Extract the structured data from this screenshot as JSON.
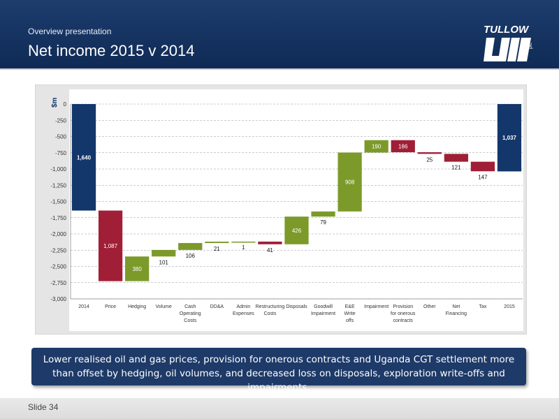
{
  "header": {
    "subtitle": "Overview presentation",
    "title": "Net income 2015 v 2014",
    "logo_text": "TULLOW",
    "logo_suffix": "plc"
  },
  "chart_data": {
    "type": "waterfall",
    "ylabel": "$m",
    "ylim": [
      -3000,
      0
    ],
    "yticks": [
      "0",
      "-250",
      "-500",
      "-750",
      "-1,000",
      "-1,250",
      "-1,500",
      "-1,750",
      "-2,000",
      "-2,250",
      "-2,500",
      "-2,750",
      "-3,000"
    ],
    "grid": true,
    "items": [
      {
        "label": "2014",
        "lines": [
          "2014"
        ],
        "start": 0,
        "end": -1640,
        "value_label": "1,640",
        "kind": "total"
      },
      {
        "label": "Price",
        "lines": [
          "Price"
        ],
        "start": -1640,
        "end": -2727,
        "value_label": "1,087",
        "kind": "negative"
      },
      {
        "label": "Hedging",
        "lines": [
          "Hedging"
        ],
        "start": -2727,
        "end": -2347,
        "value_label": "380",
        "kind": "positive"
      },
      {
        "label": "Volume",
        "lines": [
          "Volume"
        ],
        "start": -2347,
        "end": -2246,
        "value_label": "101",
        "kind": "positive"
      },
      {
        "label": "Cash Operating Costs",
        "lines": [
          "Cash",
          "Operating",
          "Costs"
        ],
        "start": -2246,
        "end": -2140,
        "value_label": "106",
        "kind": "positive"
      },
      {
        "label": "DD&A",
        "lines": [
          "DD&A"
        ],
        "start": -2140,
        "end": -2119,
        "value_label": "21",
        "kind": "positive"
      },
      {
        "label": "Admin Expenses",
        "lines": [
          "Admin",
          "Expenses"
        ],
        "start": -2119,
        "end": -2118,
        "value_label": "1",
        "kind": "positive"
      },
      {
        "label": "Restructuring Costs",
        "lines": [
          "Restructuring",
          "Costs"
        ],
        "start": -2118,
        "end": -2159,
        "value_label": "41",
        "kind": "negative"
      },
      {
        "label": "Disposals",
        "lines": [
          "Disposals"
        ],
        "start": -2159,
        "end": -1733,
        "value_label": "426",
        "kind": "positive"
      },
      {
        "label": "Goodwill Impairment",
        "lines": [
          "Goodwill",
          "Impairment"
        ],
        "start": -1733,
        "end": -1654,
        "value_label": "79",
        "kind": "positive"
      },
      {
        "label": "E&E Write offs",
        "lines": [
          "E&E",
          "Write",
          "offs"
        ],
        "start": -1654,
        "end": -746,
        "value_label": "908",
        "kind": "positive"
      },
      {
        "label": "Impairment",
        "lines": [
          "Impairment"
        ],
        "start": -746,
        "end": -556,
        "value_label": "190",
        "kind": "positive"
      },
      {
        "label": "Provision for onerous contracts",
        "lines": [
          "Provision",
          "for onerous",
          "contracts"
        ],
        "start": -556,
        "end": -742,
        "value_label": "186",
        "kind": "negative"
      },
      {
        "label": "Other",
        "lines": [
          "Other"
        ],
        "start": -742,
        "end": -767,
        "value_label": "25",
        "kind": "negative"
      },
      {
        "label": "Net Financing",
        "lines": [
          "Net",
          "Financing"
        ],
        "start": -767,
        "end": -888,
        "value_label": "121",
        "kind": "negative"
      },
      {
        "label": "Tax",
        "lines": [
          "Tax"
        ],
        "start": -888,
        "end": -1035,
        "value_label": "147",
        "kind": "negative"
      },
      {
        "label": "2015",
        "lines": [
          "2015"
        ],
        "start": 0,
        "end": -1037,
        "value_label": "1,037",
        "kind": "total"
      }
    ],
    "colors": {
      "total": "#13376b",
      "positive": "#7c9a2a",
      "negative": "#a01f36"
    }
  },
  "callout": {
    "text": "Lower realised oil and gas prices, provision for onerous contracts and Uganda CGT settlement more than offset by hedging, oil volumes, and decreased loss on disposals, exploration write-offs and impairments."
  },
  "footer": {
    "slide_label": "Slide 34"
  }
}
